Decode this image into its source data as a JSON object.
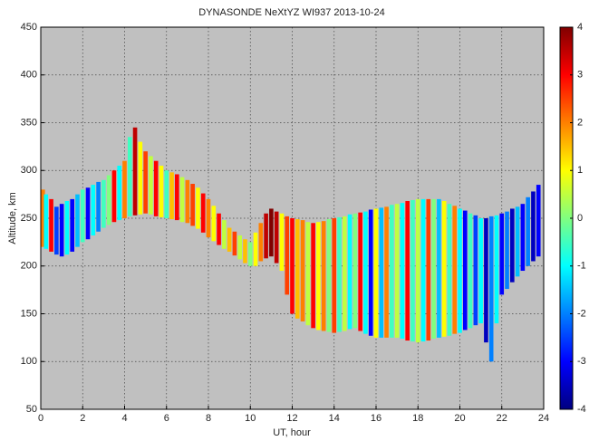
{
  "chart_data": {
    "type": "streak",
    "title": "DYNASONDE NeXtYZ WI937 2013-10-24",
    "x_label": "UT, hour",
    "y_label": "Altitude, km",
    "colormap": "jet",
    "grid": true,
    "xlim": [
      0,
      24
    ],
    "xticks": [
      0,
      2,
      4,
      6,
      8,
      10,
      12,
      14,
      16,
      18,
      20,
      22,
      24
    ],
    "ylim": [
      50,
      450
    ],
    "yticks": [
      50,
      100,
      150,
      200,
      250,
      300,
      350,
      400,
      450
    ],
    "clim": [
      -4,
      4
    ],
    "cticks": [
      -4,
      -3,
      -2,
      -1,
      0,
      1,
      2,
      3,
      4
    ],
    "x": [
      0,
      0.25,
      0.5,
      0.75,
      1,
      1.25,
      1.5,
      1.75,
      2,
      2.25,
      2.5,
      2.75,
      3,
      3.25,
      3.5,
      3.75,
      4,
      4.25,
      4.5,
      4.75,
      5,
      5.25,
      5.5,
      5.75,
      6,
      6.25,
      6.5,
      6.75,
      7,
      7.25,
      7.5,
      7.75,
      8,
      8.25,
      8.5,
      8.75,
      9,
      9.25,
      9.5,
      9.75,
      10,
      10.25,
      10.5,
      10.75,
      11,
      11.25,
      11.5,
      11.75,
      12,
      12.25,
      12.5,
      12.75,
      13,
      13.25,
      13.5,
      13.75,
      14,
      14.25,
      14.5,
      14.75,
      15,
      15.25,
      15.5,
      15.75,
      16,
      16.25,
      16.5,
      16.75,
      17,
      17.25,
      17.5,
      17.75,
      18,
      18.25,
      18.5,
      18.75,
      19,
      19.25,
      19.5,
      19.75,
      20,
      20.25,
      20.5,
      20.75,
      21,
      21.25,
      21.5,
      21.75,
      22,
      22.25,
      22.5,
      22.75,
      23,
      23.25,
      23.5,
      23.75
    ],
    "low": [
      220,
      218,
      215,
      212,
      210,
      212,
      215,
      220,
      225,
      228,
      232,
      236,
      240,
      243,
      246,
      248,
      250,
      252,
      253,
      254,
      255,
      254,
      252,
      251,
      250,
      249,
      248,
      246,
      245,
      242,
      239,
      235,
      230,
      226,
      222,
      218,
      215,
      211,
      207,
      203,
      200,
      200,
      205,
      208,
      210,
      203,
      195,
      170,
      150,
      145,
      142,
      138,
      135,
      133,
      132,
      131,
      130,
      131,
      132,
      134,
      135,
      132,
      129,
      127,
      125,
      125,
      125,
      125,
      125,
      124,
      122,
      121,
      120,
      121,
      122,
      124,
      125,
      126,
      127,
      129,
      130,
      133,
      135,
      138,
      140,
      120,
      100,
      140,
      170,
      176,
      183,
      189,
      195,
      200,
      205,
      210
    ],
    "high": [
      280,
      275,
      270,
      262,
      265,
      268,
      270,
      275,
      280,
      282,
      285,
      288,
      290,
      295,
      300,
      305,
      310,
      335,
      345,
      330,
      320,
      315,
      310,
      305,
      300,
      298,
      296,
      293,
      290,
      286,
      282,
      276,
      270,
      263,
      255,
      248,
      240,
      236,
      232,
      228,
      225,
      235,
      245,
      255,
      260,
      257,
      255,
      252,
      250,
      249,
      248,
      246,
      245,
      246,
      247,
      249,
      250,
      251,
      252,
      254,
      255,
      256,
      257,
      259,
      260,
      261,
      262,
      264,
      265,
      266,
      268,
      269,
      270,
      270,
      270,
      270,
      270,
      268,
      265,
      263,
      260,
      258,
      255,
      253,
      250,
      250,
      252,
      253,
      255,
      257,
      260,
      262,
      265,
      272,
      278,
      285
    ],
    "values": [
      2,
      -1,
      3,
      -2.5,
      -3,
      -1,
      -3,
      -1.5,
      -0.5,
      -3,
      -1,
      -2,
      -0.5,
      0,
      3,
      -1,
      2,
      -0.5,
      3.5,
      1,
      2.5,
      0.5,
      3,
      1,
      -0.5,
      1.5,
      3,
      0.5,
      2,
      2.5,
      1,
      3,
      2,
      1,
      3,
      0.5,
      1.5,
      2.5,
      0.5,
      1.5,
      0,
      1,
      2,
      3.5,
      4,
      3.5,
      1,
      2.5,
      3,
      1.5,
      2,
      0.5,
      3,
      1,
      2,
      0,
      2.5,
      -0.5,
      0.5,
      -1,
      0,
      3,
      -1,
      -3,
      1,
      -1.5,
      2,
      -0.5,
      0.5,
      -1,
      3,
      -0.5,
      0.5,
      -1,
      2.5,
      0,
      -1.5,
      1,
      -0.5,
      2,
      -1,
      -3,
      -0.5,
      -2.5,
      -1,
      -3.5,
      -2,
      -1,
      -3,
      -2,
      -3.5,
      -1.5,
      -3,
      -2,
      -3.5,
      -3
    ]
  }
}
